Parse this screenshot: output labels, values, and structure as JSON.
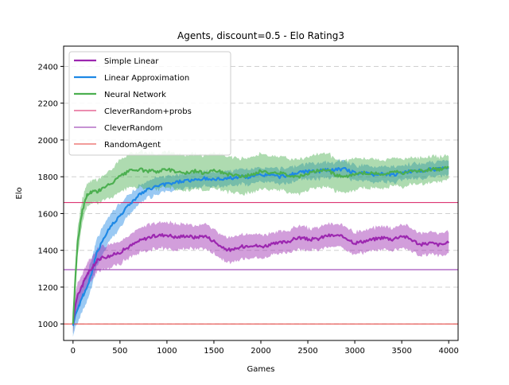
{
  "chart_data": {
    "type": "line",
    "title": "Agents, discount=0.5 - Elo Rating3",
    "xlabel": "Games",
    "ylabel": "Elo",
    "xlim": [
      -100,
      4100
    ],
    "ylim": [
      910,
      2510
    ],
    "xticks": [
      0,
      500,
      1000,
      1500,
      2000,
      2500,
      3000,
      3500,
      4000
    ],
    "yticks": [
      1000,
      1200,
      1400,
      1600,
      1800,
      2000,
      2200,
      2400
    ],
    "grid": "horizontal dashed",
    "legend_position": "upper-left",
    "series": [
      {
        "name": "Simple Linear",
        "color": "#9c27b0",
        "x": [
          0,
          25,
          50,
          100,
          150,
          200,
          250,
          300,
          400,
          500,
          600,
          700,
          800,
          900,
          1000,
          1100,
          1200,
          1300,
          1400,
          1500,
          1600,
          1700,
          1800,
          1900,
          2000,
          2100,
          2200,
          2300,
          2400,
          2500,
          2600,
          2700,
          2800,
          2900,
          3000,
          3100,
          3200,
          3300,
          3400,
          3500,
          3600,
          3700,
          3800,
          3900,
          4000
        ],
        "values": [
          1000,
          1100,
          1160,
          1210,
          1270,
          1300,
          1340,
          1360,
          1370,
          1390,
          1420,
          1450,
          1470,
          1480,
          1485,
          1470,
          1480,
          1470,
          1480,
          1450,
          1410,
          1400,
          1420,
          1430,
          1420,
          1430,
          1440,
          1450,
          1470,
          1460,
          1460,
          1480,
          1480,
          1470,
          1440,
          1450,
          1460,
          1470,
          1460,
          1480,
          1460,
          1430,
          1440,
          1430,
          1440
        ],
        "band": [
          40,
          60,
          60,
          55,
          55,
          55,
          55,
          55,
          55,
          55,
          55,
          60,
          65,
          65,
          65,
          65,
          60,
          60,
          60,
          60,
          60,
          60,
          60,
          60,
          60,
          55,
          55,
          55,
          55,
          55,
          55,
          55,
          55,
          55,
          55,
          55,
          55,
          55,
          55,
          55,
          55,
          55,
          55,
          55,
          55
        ]
      },
      {
        "name": "Linear Approximation",
        "color": "#1e88e5",
        "x": [
          0,
          25,
          50,
          100,
          150,
          200,
          250,
          300,
          400,
          500,
          600,
          700,
          800,
          900,
          1000,
          1100,
          1200,
          1300,
          1400,
          1500,
          1600,
          1700,
          1800,
          1900,
          2000,
          2100,
          2200,
          2300,
          2400,
          2500,
          2600,
          2700,
          2800,
          2900,
          3000,
          3100,
          3200,
          3300,
          3400,
          3500,
          3600,
          3700,
          3800,
          3900,
          4000
        ],
        "values": [
          990,
          1050,
          1080,
          1150,
          1200,
          1280,
          1380,
          1440,
          1530,
          1590,
          1650,
          1700,
          1730,
          1750,
          1760,
          1770,
          1780,
          1780,
          1790,
          1785,
          1790,
          1795,
          1800,
          1800,
          1810,
          1810,
          1800,
          1810,
          1820,
          1830,
          1830,
          1835,
          1840,
          1840,
          1820,
          1820,
          1810,
          1820,
          1810,
          1820,
          1830,
          1830,
          1840,
          1840,
          1850
        ],
        "band": [
          50,
          60,
          70,
          70,
          70,
          70,
          70,
          70,
          65,
          60,
          50,
          45,
          40,
          40,
          35,
          35,
          35,
          35,
          35,
          35,
          35,
          35,
          35,
          35,
          35,
          35,
          35,
          35,
          35,
          35,
          35,
          35,
          35,
          35,
          35,
          35,
          35,
          35,
          35,
          35,
          35,
          35,
          35,
          35,
          35
        ]
      },
      {
        "name": "Neural Network",
        "color": "#4caf50",
        "x": [
          0,
          25,
          50,
          100,
          150,
          200,
          250,
          300,
          400,
          500,
          600,
          700,
          800,
          900,
          1000,
          1100,
          1200,
          1300,
          1400,
          1500,
          1600,
          1700,
          1800,
          1900,
          2000,
          2100,
          2200,
          2300,
          2400,
          2500,
          2600,
          2700,
          2800,
          2900,
          3000,
          3100,
          3200,
          3300,
          3400,
          3500,
          3600,
          3700,
          3800,
          3900,
          4000
        ],
        "values": [
          1000,
          1250,
          1450,
          1620,
          1700,
          1720,
          1720,
          1730,
          1760,
          1800,
          1830,
          1840,
          1830,
          1830,
          1840,
          1830,
          1820,
          1830,
          1820,
          1840,
          1820,
          1810,
          1800,
          1810,
          1830,
          1820,
          1820,
          1810,
          1800,
          1820,
          1830,
          1840,
          1810,
          1800,
          1810,
          1820,
          1820,
          1810,
          1830,
          1820,
          1830,
          1830,
          1840,
          1840,
          1850
        ],
        "band": [
          50,
          70,
          70,
          60,
          55,
          55,
          55,
          60,
          70,
          80,
          85,
          90,
          90,
          90,
          90,
          90,
          90,
          90,
          90,
          90,
          90,
          90,
          90,
          90,
          90,
          85,
          85,
          85,
          85,
          85,
          85,
          85,
          80,
          80,
          80,
          75,
          75,
          70,
          70,
          70,
          65,
          65,
          65,
          60,
          60
        ]
      }
    ],
    "reference_lines": [
      {
        "name": "CleverRandom+probs",
        "color": "#d81b60",
        "y": 1660
      },
      {
        "name": "CleverRandom",
        "color": "#8e24aa",
        "y": 1295
      },
      {
        "name": "RandomAgent",
        "color": "#e53935",
        "y": 1000
      }
    ]
  }
}
